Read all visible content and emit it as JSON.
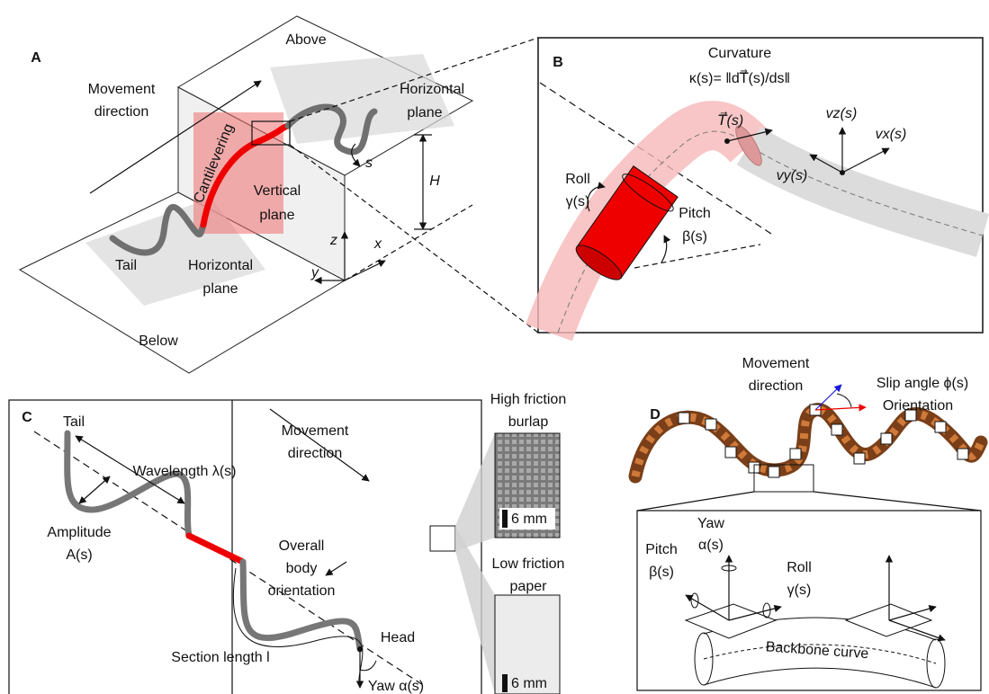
{
  "panel_a": {
    "label": "A",
    "above": "Above",
    "movement_direction": [
      "Movement",
      "direction"
    ],
    "horizontal_plane_top": [
      "Horizontal",
      "plane"
    ],
    "cantilevering": "Cantilevering",
    "vertical_plane": [
      "Vertical",
      "plane"
    ],
    "s": "s",
    "height": "H",
    "z": "z",
    "x": "x",
    "y": "y",
    "tail": "Tail",
    "horizontal_plane_bottom": [
      "Horizontal",
      "plane"
    ],
    "below": "Below"
  },
  "panel_b": {
    "label": "B",
    "curvature": "Curvature",
    "curvature_formula": "κ(s)= ‖dT⃗(s)/ds‖",
    "tangent": "T⃗(s)",
    "vz": "vz(s)",
    "vx": "vx(s)",
    "vy": "vy(s)",
    "roll": [
      "Roll",
      "γ(s)"
    ],
    "pitch": [
      "Pitch",
      "β(s)"
    ]
  },
  "panel_c": {
    "label": "C",
    "tail": "Tail",
    "wavelength": "Wavelength λ(s)",
    "movement_direction": [
      "Movement",
      "direction"
    ],
    "amplitude": [
      "Amplitude",
      "A(s)"
    ],
    "overall_orientation": [
      "Overall",
      "body",
      "orientation"
    ],
    "section_length": "Section length l",
    "head": "Head",
    "yaw": "Yaw α(s)",
    "high_friction": [
      "High friction",
      "burlap"
    ],
    "scale_high": "6 mm",
    "low_friction": [
      "Low friction",
      "paper"
    ],
    "scale_low": "6 mm"
  },
  "panel_d": {
    "label": "D",
    "movement_direction": [
      "Movement",
      "direction"
    ],
    "slip_angle": "Slip angle ϕ(s)",
    "orientation": "Orientation",
    "yaw": [
      "Yaw",
      "α(s)"
    ],
    "pitch": [
      "Pitch",
      "β(s)"
    ],
    "roll": [
      "Roll",
      "γ(s)"
    ],
    "backbone": "Backbone curve"
  }
}
